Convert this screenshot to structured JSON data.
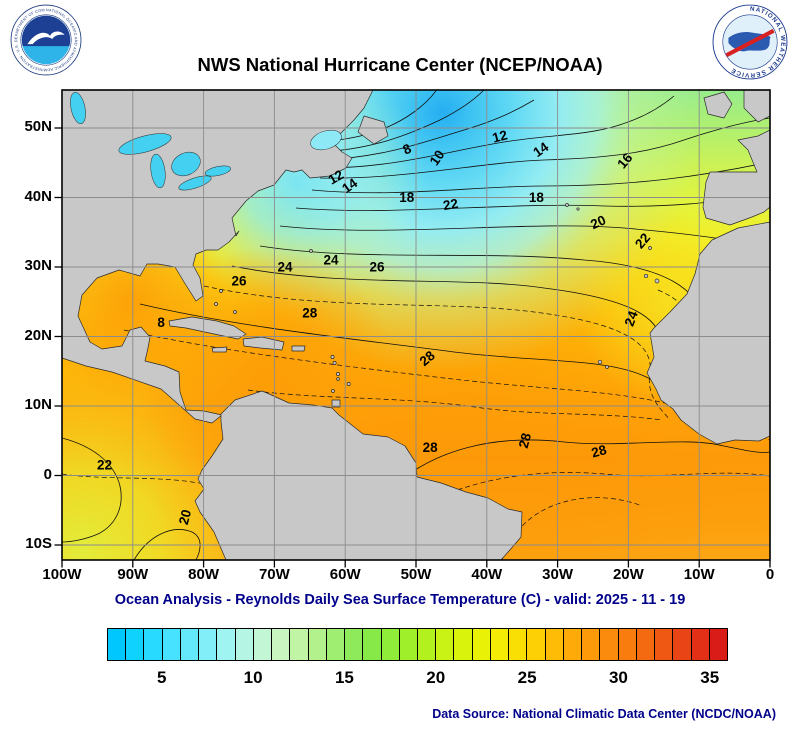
{
  "header": {
    "title": "NWS National Hurricane Center (NCEP/NOAA)"
  },
  "logos": {
    "noaa": {
      "name": "NOAA",
      "ring_text": "NATIONAL OCEANIC AND ATMOSPHERIC ADMINISTRATION - U.S. DEPARTMENT OF COMMERCE"
    },
    "nws": {
      "name": "National Weather Service",
      "ring_text": "NATIONAL WEATHER SERVICE"
    }
  },
  "footer": {
    "credit": "Data Source: National Climatic Data Center (NCDC/NOAA)"
  },
  "land_color": "#c8c8c8",
  "chart_data": {
    "type": "heatmap",
    "title": "NWS National Hurricane Center (NCEP/NOAA)",
    "subtitle": "Ocean Analysis - Reynolds Daily Sea Surface Temperature (C) - valid: 2025 - 11 - 19",
    "variable": "Sea Surface Temperature",
    "units": "C",
    "grid": true,
    "lon_range": [
      -100,
      0
    ],
    "lat_range": [
      -12.2,
      55.5
    ],
    "x_tick_labels": [
      "100W",
      "90W",
      "80W",
      "70W",
      "60W",
      "50W",
      "40W",
      "30W",
      "20W",
      "10W",
      "0"
    ],
    "y_tick_labels": [
      "50N",
      "40N",
      "30N",
      "20N",
      "10N",
      "0",
      "10S"
    ],
    "contour_interval": 1,
    "labeled_contour_values": [
      8,
      10,
      12,
      14,
      16,
      18,
      20,
      22,
      24,
      26,
      28
    ],
    "colorbar": {
      "min": 2,
      "max": 36,
      "ticks": [
        5,
        10,
        15,
        20,
        25,
        30,
        35
      ],
      "colors": [
        "#00c8ff",
        "#10d2ff",
        "#28daff",
        "#46e2ff",
        "#64e9fc",
        "#82eef8",
        "#9ff3f0",
        "#b4f5e4",
        "#c3f6d4",
        "#c9f6c0",
        "#c2f4a6",
        "#b2f18c",
        "#9fee72",
        "#8eea5a",
        "#86e948",
        "#8fec38",
        "#9fef2a",
        "#b3f11e",
        "#c8f314",
        "#daf30c",
        "#e9f206",
        "#f4ec04",
        "#fadf04",
        "#fdcf05",
        "#febc06",
        "#feaa08",
        "#fd9a0a",
        "#fb8b0c",
        "#f87c0e",
        "#f46a10",
        "#ef5813",
        "#e94415",
        "#e23017",
        "#da1c18"
      ]
    },
    "contour_labels": [
      {
        "value": "8",
        "lon": -51,
        "lat": 47,
        "rot": -25
      },
      {
        "value": "10",
        "lon": -46.5,
        "lat": 46,
        "rot": -55
      },
      {
        "value": "12",
        "lon": -38,
        "lat": 48.8,
        "rot": -15
      },
      {
        "value": "14",
        "lon": -32,
        "lat": 47,
        "rot": -35
      },
      {
        "value": "16",
        "lon": -20,
        "lat": 45.5,
        "rot": -50
      },
      {
        "value": "12",
        "lon": -61,
        "lat": 43,
        "rot": -30
      },
      {
        "value": "14",
        "lon": -59,
        "lat": 41.8,
        "rot": -35
      },
      {
        "value": "18",
        "lon": -51.3,
        "lat": 40,
        "rot": 0
      },
      {
        "value": "22",
        "lon": -45,
        "lat": 39,
        "rot": -10
      },
      {
        "value": "18",
        "lon": -33,
        "lat": 40,
        "rot": 0
      },
      {
        "value": "20",
        "lon": -24,
        "lat": 36.5,
        "rot": -25
      },
      {
        "value": "22",
        "lon": -17.5,
        "lat": 34,
        "rot": -50
      },
      {
        "value": "24",
        "lon": -68.5,
        "lat": 30,
        "rot": 0
      },
      {
        "value": "24",
        "lon": -62,
        "lat": 31,
        "rot": 0
      },
      {
        "value": "26",
        "lon": -75,
        "lat": 28,
        "rot": 0
      },
      {
        "value": "26",
        "lon": -55.5,
        "lat": 30,
        "rot": 0
      },
      {
        "value": "28",
        "lon": -65,
        "lat": 23.4,
        "rot": 0
      },
      {
        "value": "8",
        "lon": -86,
        "lat": 22,
        "rot": 0
      },
      {
        "value": "24",
        "lon": -19,
        "lat": 23,
        "rot": -70
      },
      {
        "value": "28",
        "lon": -48,
        "lat": 17,
        "rot": -40
      },
      {
        "value": "28",
        "lon": -48,
        "lat": 4,
        "rot": 0
      },
      {
        "value": "28",
        "lon": -34,
        "lat": 5.5,
        "rot": -75
      },
      {
        "value": "28",
        "lon": -24,
        "lat": 3.5,
        "rot": -15
      },
      {
        "value": "22",
        "lon": -94,
        "lat": 1.5,
        "rot": 0
      },
      {
        "value": "20",
        "lon": -82,
        "lat": -5.5,
        "rot": -75
      }
    ]
  }
}
